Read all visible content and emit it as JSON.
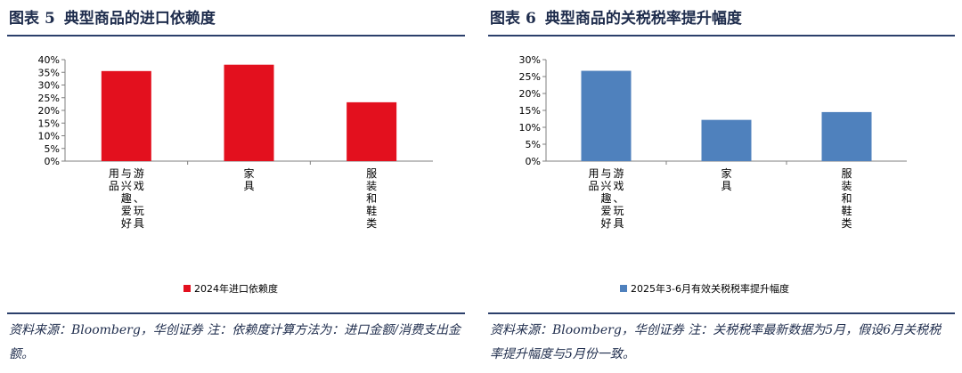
{
  "panels": [
    {
      "label": "图表",
      "number": "5",
      "title": "典型商品的进口依赖度",
      "source": "资料来源：Bloomberg，华创证券 注：依赖度计算方法为：进口金额/消费支出金额。"
    },
    {
      "label": "图表",
      "number": "6",
      "title": "典型商品的关税税率提升幅度",
      "source": "资料来源：Bloomberg，华创证券 注：关税税率最新数据为5月，假设6月关税税率提升幅度与5月份一致。"
    }
  ],
  "chart_data": [
    {
      "type": "bar",
      "categories": [
        "游戏、玩具与兴趣爱好用品",
        "家具",
        "服装和鞋类"
      ],
      "series": [
        {
          "name": "2024年进口依赖度",
          "values": [
            0.355,
            0.38,
            0.232
          ],
          "color": "#e3101e"
        }
      ],
      "y_ticks": [
        "0%",
        "5%",
        "10%",
        "15%",
        "20%",
        "25%",
        "30%",
        "35%",
        "40%"
      ],
      "ylim": [
        0,
        0.4
      ],
      "grid": false,
      "legend_position": "bottom"
    },
    {
      "type": "bar",
      "categories": [
        "游戏、玩具与兴趣爱好用品",
        "家具",
        "服装和鞋类"
      ],
      "series": [
        {
          "name": "2025年3-6月有效关税税率提升幅度",
          "values": [
            0.267,
            0.122,
            0.145
          ],
          "color": "#4f81bd"
        }
      ],
      "y_ticks": [
        "0%",
        "5%",
        "10%",
        "15%",
        "20%",
        "25%",
        "30%"
      ],
      "ylim": [
        0,
        0.3
      ],
      "grid": false,
      "legend_position": "bottom"
    }
  ]
}
